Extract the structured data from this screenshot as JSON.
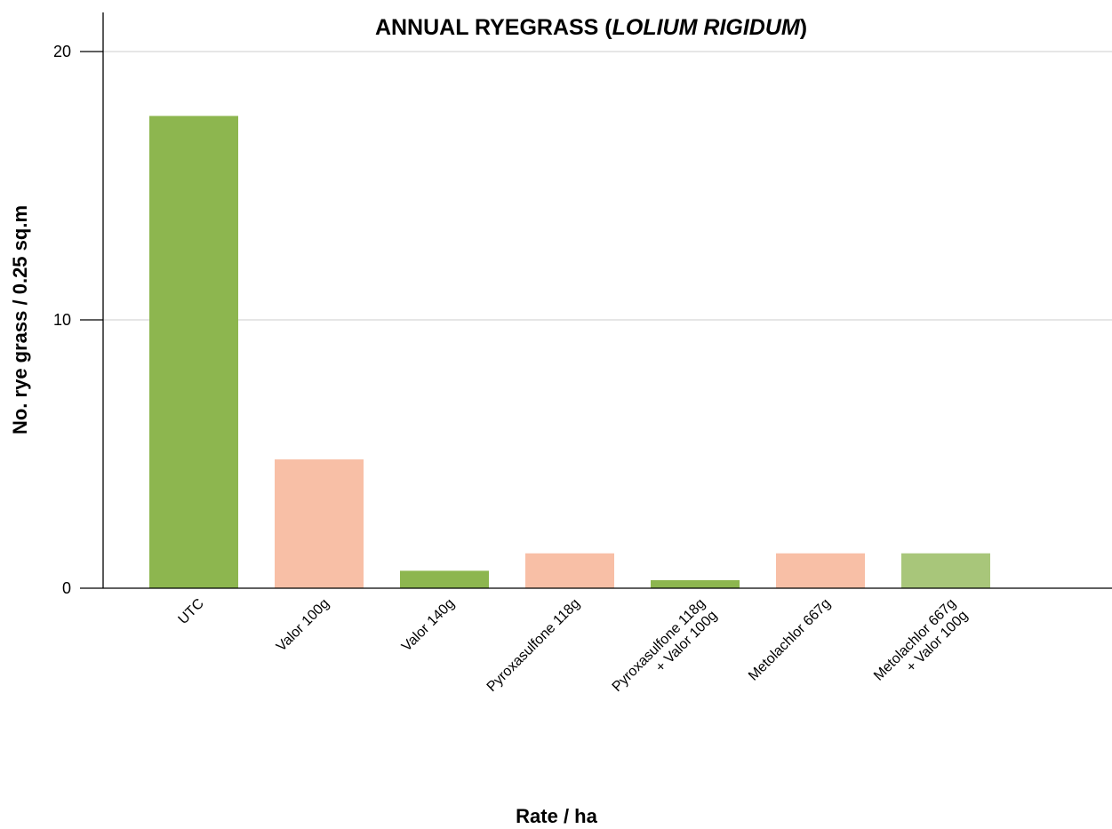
{
  "chart_data": {
    "type": "bar",
    "title_main": "ANNUAL RYEGRASS (",
    "title_italic": "LOLIUM RIGIDUM",
    "title_end": ")",
    "xlabel": "Rate / ha",
    "ylabel": "No. rye grass / 0.25 sq.m",
    "ylim": [
      0,
      20
    ],
    "yticks": [
      0,
      10,
      20
    ],
    "grid": true,
    "categories": [
      [
        "UTC"
      ],
      [
        "Valor 100g"
      ],
      [
        "Valor 140g"
      ],
      [
        "Pyroxasulfone 118g"
      ],
      [
        "Pyroxasulfone 118g",
        "+ Valor 100g"
      ],
      [
        "Metolachlor 667g"
      ],
      [
        "Metolachlor 667g",
        "+ Valor 100g"
      ]
    ],
    "values": [
      17.6,
      4.8,
      0.65,
      1.3,
      0.3,
      1.3,
      1.3
    ],
    "colors": [
      "#8db64f",
      "#f8bfa6",
      "#8db64f",
      "#f8bfa6",
      "#8db64f",
      "#f8bfa6",
      "#a8c67a"
    ]
  }
}
